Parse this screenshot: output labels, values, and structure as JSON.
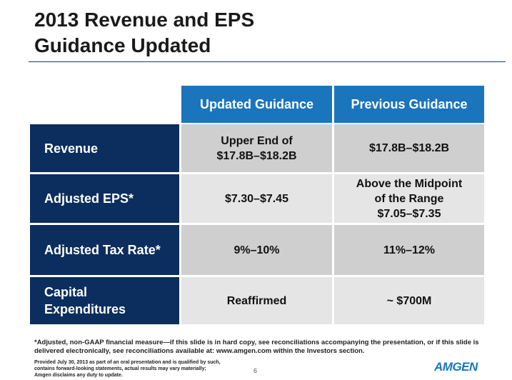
{
  "title": {
    "line1": "2013 Revenue and EPS",
    "line2": "Guidance Updated"
  },
  "table": {
    "columns": [
      "Updated Guidance",
      "Previous Guidance"
    ],
    "rows": [
      {
        "label": [
          "Revenue"
        ],
        "updated": [
          "Upper End of",
          "$17.8B–$18.2B"
        ],
        "previous": [
          "$17.8B–$18.2B"
        ]
      },
      {
        "label": [
          "Adjusted EPS*"
        ],
        "updated": [
          "$7.30–$7.45"
        ],
        "previous": [
          "Above the Midpoint",
          "of the Range",
          "$7.05–$7.35"
        ]
      },
      {
        "label": [
          "Adjusted Tax Rate*"
        ],
        "updated": [
          "9%–10%"
        ],
        "previous": [
          "11%–12%"
        ]
      },
      {
        "label": [
          "Capital",
          "Expenditures"
        ],
        "updated": [
          "Reaffirmed"
        ],
        "previous": [
          "~ $700M"
        ]
      }
    ]
  },
  "footnote": "*Adjusted, non-GAAP financial measure—if this slide is in hard copy, see reconciliations accompanying the presentation, or if this slide is delivered electronically, see reconciliations available at: www.amgen.com within the Investors section.",
  "disclaimer": {
    "line1": "Provided July 30, 2013 as part of an oral presentation and is qualified by such,",
    "line2": "contains forward-looking statements, actual results may vary materially;",
    "line3": "Amgen disclaims any duty to update."
  },
  "page_number": "6",
  "logo_text": "AMGEN"
}
